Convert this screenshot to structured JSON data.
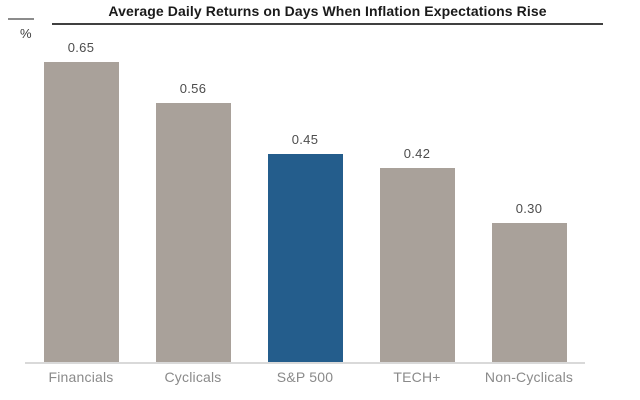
{
  "title": "Average Daily Returns on Days When Inflation Expectations Rise",
  "y_axis_unit": "%",
  "chart_data": {
    "type": "bar",
    "title": "Average Daily Returns on Days When Inflation Expectations Rise",
    "ylabel": "%",
    "xlabel": "",
    "categories": [
      "Financials",
      "Cyclicals",
      "S&P 500",
      "TECH+",
      "Non-Cyclicals"
    ],
    "values": [
      0.65,
      0.56,
      0.45,
      0.42,
      0.3
    ],
    "value_labels": [
      "0.65",
      "0.56",
      "0.45",
      "0.42",
      "0.30"
    ],
    "ylim": [
      0,
      0.72
    ],
    "grid": false,
    "legend": "none",
    "highlight_category": "S&P 500",
    "colors": {
      "bar_default": "#a9a19a",
      "bar_highlight": "#245d8c",
      "value_label": "#4d4d4d",
      "category_label": "#8a8a8a",
      "axis_line": "#d9d9d9",
      "title_text": "#1a1a1a",
      "title_rule": "#404040"
    }
  }
}
